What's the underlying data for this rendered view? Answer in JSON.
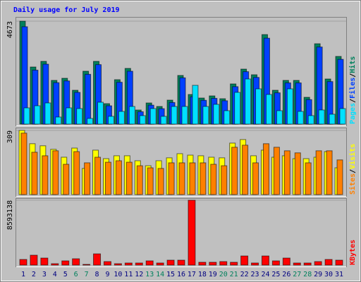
{
  "title": "Daily usage for July 2019",
  "chart_data": [
    {
      "type": "bar",
      "ylim": [
        0,
        4673
      ],
      "yticks": [
        4673
      ],
      "legend_separator": "/",
      "series": [
        {
          "name": "Hits",
          "color": "#00805c",
          "values": [
            4673,
            2592,
            2848,
            1984,
            2080,
            1536,
            2400,
            2848,
            928,
            2016,
            2528,
            640,
            960,
            800,
            1088,
            2208,
            1344,
            1184,
            1280,
            1152,
            1824,
            2496,
            2240,
            4064,
            1536,
            1984,
            1984,
            1216,
            3648,
            2048,
            3072
          ]
        },
        {
          "name": "Files",
          "color": "#0040ff",
          "values": [
            4420,
            2450,
            2720,
            1880,
            1960,
            1440,
            2260,
            2700,
            830,
            1900,
            2400,
            560,
            860,
            700,
            980,
            2100,
            1240,
            1080,
            1170,
            1060,
            1700,
            2380,
            2120,
            3900,
            1420,
            1870,
            1870,
            1110,
            3500,
            1930,
            2940
          ]
        },
        {
          "name": "Pages",
          "color": "#00e0ff",
          "values": [
            736,
            832,
            960,
            320,
            736,
            704,
            256,
            992,
            352,
            576,
            800,
            384,
            704,
            352,
            800,
            800,
            1760,
            800,
            896,
            608,
            1440,
            2048,
            1600,
            1344,
            608,
            1600,
            576,
            384,
            640,
            448,
            704
          ]
        }
      ]
    },
    {
      "type": "bar",
      "ylim": [
        0,
        309
      ],
      "yticks": [
        309
      ],
      "legend_separator": "/",
      "series": [
        {
          "name": "Visits",
          "color": "#ffff00",
          "values": [
            309,
            245,
            235,
            218,
            180,
            224,
            126,
            214,
            173,
            187,
            187,
            163,
            139,
            163,
            177,
            197,
            190,
            187,
            180,
            177,
            248,
            265,
            187,
            214,
            180,
            187,
            173,
            173,
            180,
            207,
            129
          ]
        },
        {
          "name": "Sites",
          "color": "#ff8000",
          "values": [
            296,
            204,
            187,
            211,
            146,
            207,
            153,
            180,
            156,
            163,
            156,
            139,
            129,
            126,
            153,
            153,
            153,
            153,
            146,
            139,
            228,
            238,
            153,
            245,
            228,
            211,
            201,
            153,
            211,
            211,
            167
          ]
        }
      ]
    },
    {
      "type": "bar",
      "ylim": [
        0,
        8593138
      ],
      "yticks": [
        8593138
      ],
      "categories": [
        "1",
        "2",
        "3",
        "4",
        "5",
        "6",
        "7",
        "8",
        "9",
        "10",
        "11",
        "12",
        "13",
        "14",
        "15",
        "16",
        "17",
        "18",
        "19",
        "20",
        "21",
        "22",
        "23",
        "24",
        "25",
        "26",
        "27",
        "28",
        "29",
        "30",
        "31"
      ],
      "category_colors": [
        "#000080",
        "#000080",
        "#000080",
        "#000080",
        "#000080",
        "#00805c",
        "#00805c",
        "#000080",
        "#000080",
        "#000080",
        "#000080",
        "#000080",
        "#00805c",
        "#00805c",
        "#000080",
        "#000080",
        "#000080",
        "#000080",
        "#000080",
        "#00805c",
        "#00805c",
        "#000080",
        "#000080",
        "#000080",
        "#000080",
        "#000080",
        "#00805c",
        "#00805c",
        "#000080",
        "#000080",
        "#000080"
      ],
      "series": [
        {
          "name": "KBytes",
          "color": "#ff0000",
          "values": [
            747000,
            1310000,
            934000,
            187000,
            560000,
            840000,
            93000,
            1490000,
            467000,
            187000,
            280000,
            280000,
            560000,
            280000,
            654000,
            654000,
            8593138,
            374000,
            374000,
            467000,
            374000,
            1210000,
            280000,
            1210000,
            560000,
            934000,
            280000,
            280000,
            467000,
            747000,
            654000
          ]
        }
      ]
    }
  ]
}
